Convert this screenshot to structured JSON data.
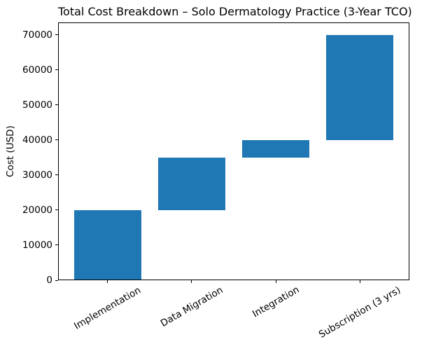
{
  "chart_data": {
    "type": "bar",
    "subtype": "waterfall",
    "title": "Total Cost Breakdown – Solo Dermatology Practice (3-Year TCO)",
    "xlabel": "",
    "ylabel": "Cost (USD)",
    "categories": [
      "Implementation",
      "Data Migration",
      "Integration",
      "Subscription (3 yrs)"
    ],
    "bars": [
      {
        "category": "Implementation",
        "start": 0,
        "end": 20000,
        "value": 20000
      },
      {
        "category": "Data Migration",
        "start": 20000,
        "end": 35000,
        "value": 15000
      },
      {
        "category": "Integration",
        "start": 35000,
        "end": 40000,
        "value": 5000
      },
      {
        "category": "Subscription (3 yrs)",
        "start": 40000,
        "end": 70000,
        "value": 30000
      }
    ],
    "cumulative_total": 70000,
    "yticks": [
      0,
      10000,
      20000,
      30000,
      40000,
      50000,
      60000,
      70000
    ],
    "ylim": [
      0,
      73500
    ],
    "bar_color": "#1f77b4",
    "bar_width_fraction": 0.8,
    "x_tick_rotation_deg": 30,
    "grid": false,
    "legend": false
  }
}
